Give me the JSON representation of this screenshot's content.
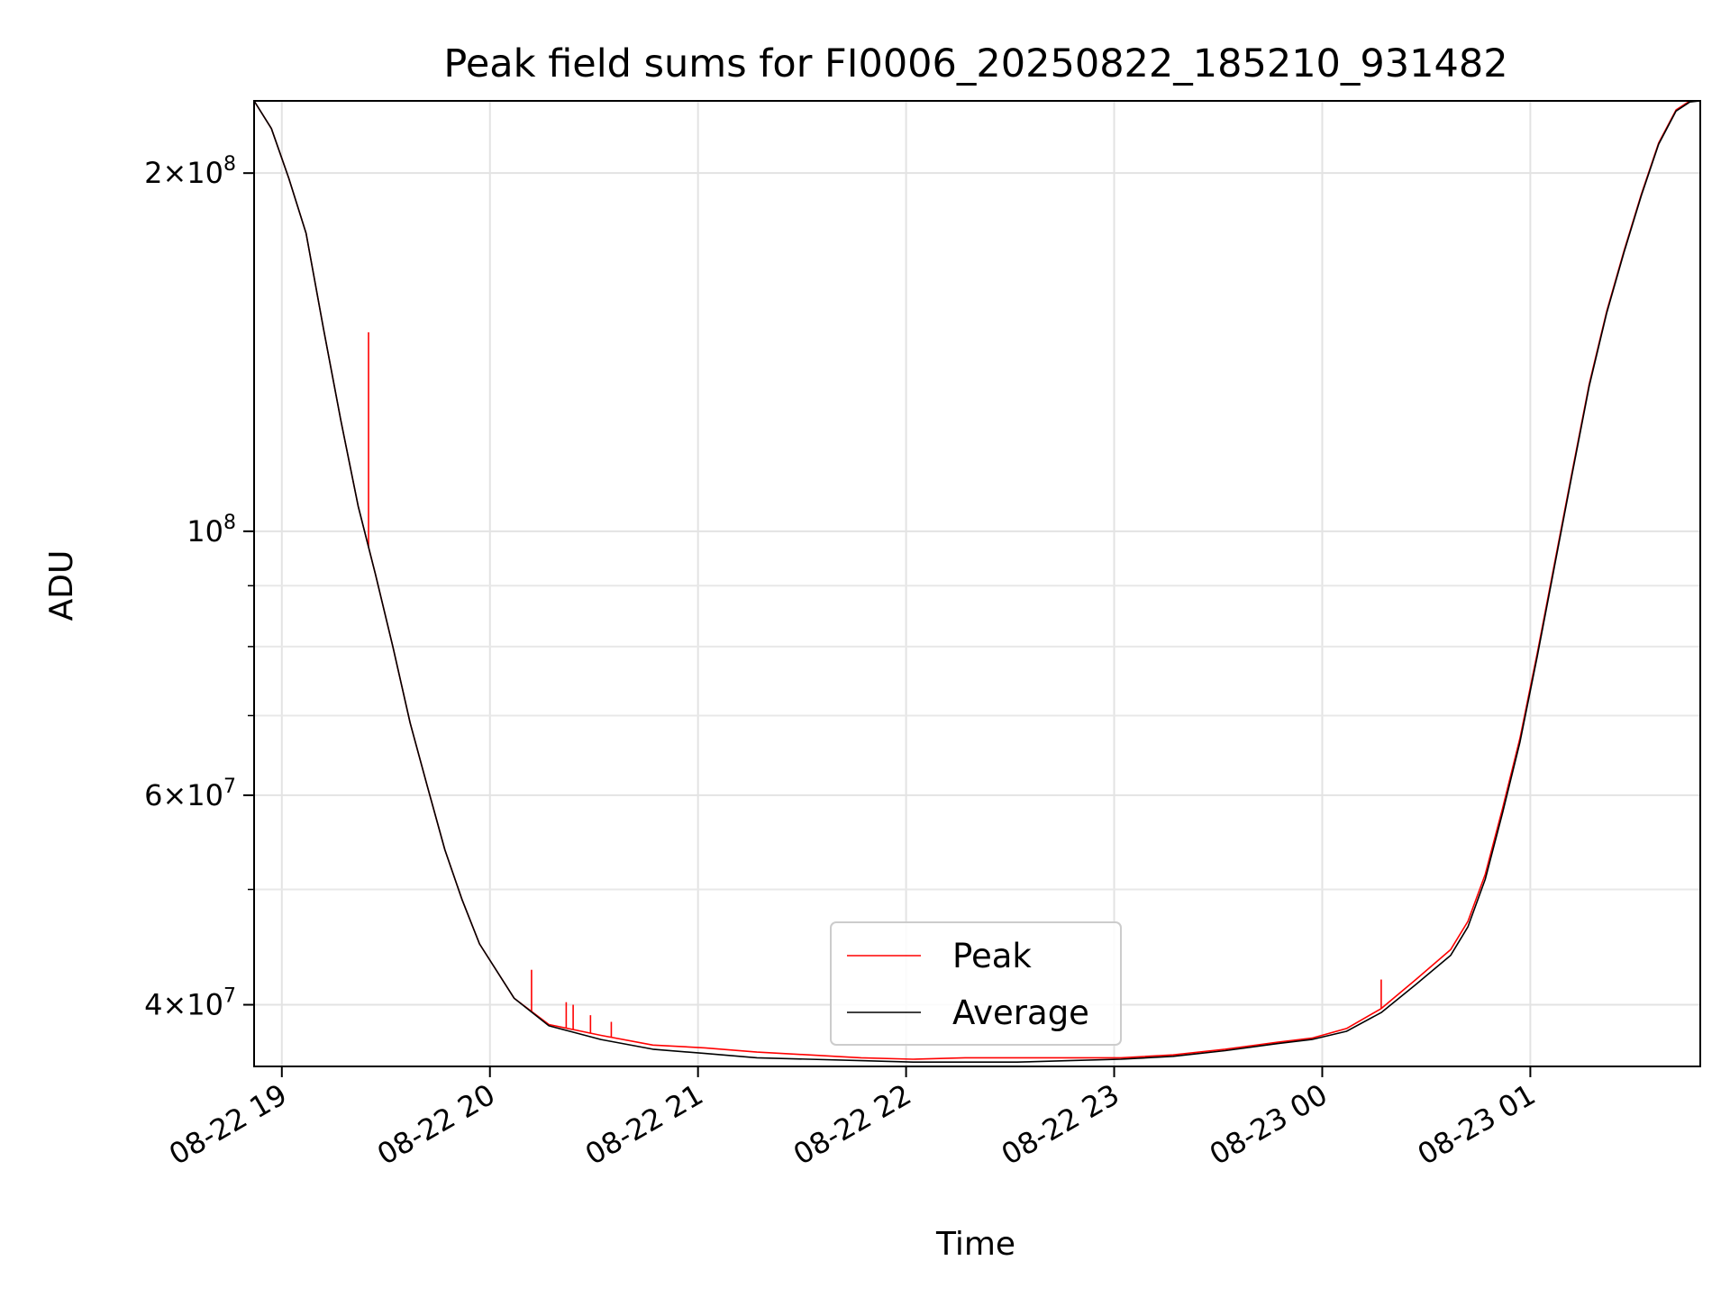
{
  "chart_data": {
    "type": "line",
    "title": "Peak field sums for FI0006_20250822_185210_931482",
    "xlabel": "Time",
    "ylabel": "ADU",
    "x_scale": "time",
    "y_scale": "log",
    "xlim": [
      "2025-08-22 18:52",
      "2025-08-23 01:49"
    ],
    "ylim": [
      35500000,
      230000000
    ],
    "x_ticks": [
      {
        "t": "2025-08-22 19:00",
        "label": "08-22 19"
      },
      {
        "t": "2025-08-22 20:00",
        "label": "08-22 20"
      },
      {
        "t": "2025-08-22 21:00",
        "label": "08-22 21"
      },
      {
        "t": "2025-08-22 22:00",
        "label": "08-22 22"
      },
      {
        "t": "2025-08-22 23:00",
        "label": "08-22 23"
      },
      {
        "t": "2025-08-23 00:00",
        "label": "08-23 00"
      },
      {
        "t": "2025-08-23 01:00",
        "label": "08-23 01"
      }
    ],
    "y_ticks_major": [
      {
        "value": 40000000,
        "label_mantissa": "4",
        "label_exp": "7"
      },
      {
        "value": 60000000,
        "label_mantissa": "6",
        "label_exp": "7"
      },
      {
        "value": 100000000,
        "label_mantissa": "",
        "label_exp": "8"
      },
      {
        "value": 200000000,
        "label_mantissa": "2",
        "label_exp": "8"
      }
    ],
    "y_ticks_minor": [
      50000000,
      70000000,
      80000000,
      90000000
    ],
    "grid": true,
    "legend": "lower-center",
    "series": [
      {
        "name": "Peak",
        "color": "#ff0000",
        "x": [
          "2025-08-22 18:52",
          "2025-08-22 18:57",
          "2025-08-22 19:02",
          "2025-08-22 19:07",
          "2025-08-22 19:12",
          "2025-08-22 19:17",
          "2025-08-22 19:22",
          "2025-08-22 19:27",
          "2025-08-22 19:32",
          "2025-08-22 19:37",
          "2025-08-22 19:42",
          "2025-08-22 19:47",
          "2025-08-22 19:52",
          "2025-08-22 19:57",
          "2025-08-22 20:07",
          "2025-08-22 20:17",
          "2025-08-22 20:32",
          "2025-08-22 20:47",
          "2025-08-22 21:02",
          "2025-08-22 21:17",
          "2025-08-22 21:32",
          "2025-08-22 21:47",
          "2025-08-22 22:02",
          "2025-08-22 22:17",
          "2025-08-22 22:32",
          "2025-08-22 22:47",
          "2025-08-22 23:02",
          "2025-08-22 23:17",
          "2025-08-22 23:32",
          "2025-08-22 23:47",
          "2025-08-22 23:57",
          "2025-08-23 00:07",
          "2025-08-23 00:17",
          "2025-08-23 00:27",
          "2025-08-23 00:37",
          "2025-08-23 00:42",
          "2025-08-23 00:47",
          "2025-08-23 00:52",
          "2025-08-23 00:57",
          "2025-08-23 01:02",
          "2025-08-23 01:07",
          "2025-08-23 01:12",
          "2025-08-23 01:17",
          "2025-08-23 01:22",
          "2025-08-23 01:27",
          "2025-08-23 01:32",
          "2025-08-23 01:37",
          "2025-08-23 01:42",
          "2025-08-23 01:46",
          "2025-08-23 01:49"
        ],
        "y": [
          230000000,
          218000000,
          198000000,
          178000000,
          148000000,
          124000000,
          105000000,
          92000000,
          80000000,
          69000000,
          61000000,
          54000000,
          49000000,
          45000000,
          40500000,
          38500000,
          37700000,
          37000000,
          36800000,
          36500000,
          36300000,
          36100000,
          36000000,
          36100000,
          36100000,
          36100000,
          36100000,
          36300000,
          36700000,
          37200000,
          37500000,
          38200000,
          39700000,
          42000000,
          44500000,
          47000000,
          51500000,
          58500000,
          67000000,
          79000000,
          94000000,
          112000000,
          133000000,
          153000000,
          172000000,
          192000000,
          212000000,
          226000000,
          230000000,
          230000000
        ],
        "spikes": [
          {
            "x": "2025-08-22 19:25",
            "y": 147000000
          },
          {
            "x": "2025-08-22 20:12",
            "y": 42800000
          },
          {
            "x": "2025-08-22 20:22",
            "y": 40200000
          },
          {
            "x": "2025-08-22 20:24",
            "y": 40000000
          },
          {
            "x": "2025-08-22 20:29",
            "y": 39200000
          },
          {
            "x": "2025-08-22 20:35",
            "y": 38700000
          },
          {
            "x": "2025-08-23 00:17",
            "y": 42000000
          }
        ]
      },
      {
        "name": "Average",
        "color": "#000000",
        "x": [
          "2025-08-22 18:52",
          "2025-08-22 18:57",
          "2025-08-22 19:02",
          "2025-08-22 19:07",
          "2025-08-22 19:12",
          "2025-08-22 19:17",
          "2025-08-22 19:22",
          "2025-08-22 19:27",
          "2025-08-22 19:32",
          "2025-08-22 19:37",
          "2025-08-22 19:42",
          "2025-08-22 19:47",
          "2025-08-22 19:52",
          "2025-08-22 19:57",
          "2025-08-22 20:07",
          "2025-08-22 20:17",
          "2025-08-22 20:32",
          "2025-08-22 20:47",
          "2025-08-22 21:02",
          "2025-08-22 21:17",
          "2025-08-22 21:32",
          "2025-08-22 21:47",
          "2025-08-22 22:02",
          "2025-08-22 22:17",
          "2025-08-22 22:32",
          "2025-08-22 22:47",
          "2025-08-22 23:02",
          "2025-08-22 23:17",
          "2025-08-22 23:32",
          "2025-08-22 23:47",
          "2025-08-22 23:57",
          "2025-08-23 00:07",
          "2025-08-23 00:17",
          "2025-08-23 00:27",
          "2025-08-23 00:37",
          "2025-08-23 00:42",
          "2025-08-23 00:47",
          "2025-08-23 00:52",
          "2025-08-23 00:57",
          "2025-08-23 01:02",
          "2025-08-23 01:07",
          "2025-08-23 01:12",
          "2025-08-23 01:17",
          "2025-08-23 01:22",
          "2025-08-23 01:27",
          "2025-08-23 01:32",
          "2025-08-23 01:37",
          "2025-08-23 01:42",
          "2025-08-23 01:46",
          "2025-08-23 01:49"
        ],
        "y": [
          230000000,
          218000000,
          198000000,
          178000000,
          148000000,
          124000000,
          105000000,
          92000000,
          80000000,
          69000000,
          61000000,
          54000000,
          49000000,
          45000000,
          40500000,
          38400000,
          37400000,
          36700000,
          36400000,
          36100000,
          36000000,
          35900000,
          35800000,
          35800000,
          35800000,
          35900000,
          36000000,
          36200000,
          36600000,
          37100000,
          37400000,
          38000000,
          39400000,
          41600000,
          44000000,
          46500000,
          51000000,
          58000000,
          66500000,
          78500000,
          93500000,
          111500000,
          132500000,
          152500000,
          171500000,
          191500000,
          211500000,
          225500000,
          229500000,
          230000000
        ]
      }
    ]
  }
}
